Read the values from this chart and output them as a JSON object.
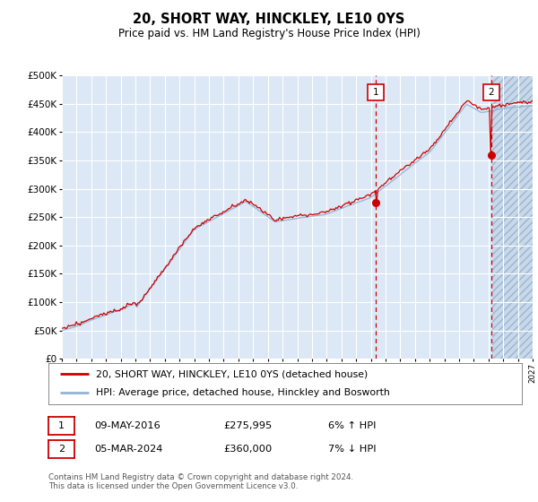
{
  "title": "20, SHORT WAY, HINCKLEY, LE10 0YS",
  "subtitle": "Price paid vs. HM Land Registry's House Price Index (HPI)",
  "legend_line1": "20, SHORT WAY, HINCKLEY, LE10 0YS (detached house)",
  "legend_line2": "HPI: Average price, detached house, Hinckley and Bosworth",
  "footer": "Contains HM Land Registry data © Crown copyright and database right 2024.\nThis data is licensed under the Open Government Licence v3.0.",
  "annotation1_label": "1",
  "annotation1_date": "09-MAY-2016",
  "annotation1_price": "£275,995",
  "annotation1_hpi": "6% ↑ HPI",
  "annotation2_label": "2",
  "annotation2_date": "05-MAR-2024",
  "annotation2_price": "£360,000",
  "annotation2_hpi": "7% ↓ HPI",
  "ylim": [
    0,
    500000
  ],
  "yticks": [
    0,
    50000,
    100000,
    150000,
    200000,
    250000,
    300000,
    350000,
    400000,
    450000,
    500000
  ],
  "hpi_color": "#92b4d4",
  "price_color": "#cc0000",
  "vline_color": "#cc0000",
  "background_plot": "#dce8f5",
  "background_future": "#ccdaeb",
  "grid_color": "#ffffff",
  "marker1_x": 2016.35,
  "marker2_x": 2024.17,
  "marker1_y": 275995,
  "marker2_y": 360000,
  "xmin": 1995,
  "xmax": 2027,
  "future_start": 2024.25
}
